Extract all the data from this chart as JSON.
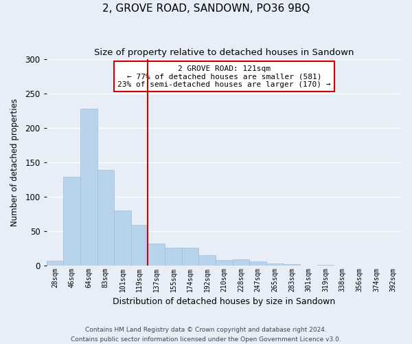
{
  "title": "2, GROVE ROAD, SANDOWN, PO36 9BQ",
  "subtitle": "Size of property relative to detached houses in Sandown",
  "xlabel": "Distribution of detached houses by size in Sandown",
  "ylabel": "Number of detached properties",
  "categories": [
    "28sqm",
    "46sqm",
    "64sqm",
    "83sqm",
    "101sqm",
    "119sqm",
    "137sqm",
    "155sqm",
    "174sqm",
    "192sqm",
    "210sqm",
    "228sqm",
    "247sqm",
    "265sqm",
    "283sqm",
    "301sqm",
    "319sqm",
    "338sqm",
    "356sqm",
    "374sqm",
    "392sqm"
  ],
  "values": [
    7,
    129,
    228,
    139,
    80,
    59,
    32,
    26,
    26,
    15,
    8,
    9,
    6,
    3,
    2,
    0,
    1,
    0,
    0,
    0,
    0
  ],
  "bar_color": "#b8d4ec",
  "bar_edge_color": "#a0bcd8",
  "vline_x": 5.5,
  "vline_color": "#cc0000",
  "annotation_title": "2 GROVE ROAD: 121sqm",
  "annotation_line1": "← 77% of detached houses are smaller (581)",
  "annotation_line2": "23% of semi-detached houses are larger (170) →",
  "annotation_box_edge": "#cc0000",
  "ylim": [
    0,
    300
  ],
  "yticks": [
    0,
    50,
    100,
    150,
    200,
    250,
    300
  ],
  "footnote1": "Contains HM Land Registry data © Crown copyright and database right 2024.",
  "footnote2": "Contains public sector information licensed under the Open Government Licence v3.0.",
  "bg_color": "#e8eef8",
  "plot_bg_color": "#e8eef8",
  "grid_color": "#ffffff"
}
